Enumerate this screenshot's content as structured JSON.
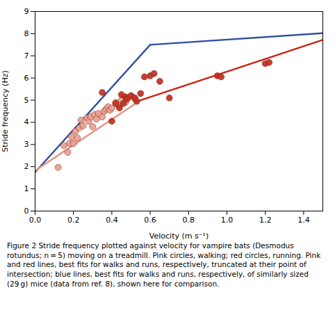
{
  "chart_data": {
    "type": "scatter",
    "xlabel": "Velocity (m s⁻¹)",
    "ylabel": "Stride frequency (Hz)",
    "caption": "Figure 2 Stride frequency plotted against velocity for vampire bats (Desmodus rotundus; n = 5) moving on a treadmill. Pink circles, walking; red circles, running. Pink and red lines, best fits for walks and runs, respectively, truncated at their point of intersection; blue lines, best fits for walks and runs, respectively, of similarly sized (29 g) mice (data from ref. 8), shown here for comparison.",
    "xlim": [
      0,
      1.5
    ],
    "ylim": [
      0,
      9
    ],
    "xticks": [
      {
        "value": 0,
        "label": "0.0"
      },
      0.2,
      0.4,
      0.6,
      0.8,
      {
        "value": 1.0,
        "label": "1.0"
      },
      1.2,
      1.4
    ],
    "yticks": [
      0,
      1,
      2,
      3,
      4,
      5,
      6,
      7,
      8,
      9
    ],
    "grid": false,
    "series": [
      {
        "type": "line",
        "color": "#3050a0",
        "x": [
          0.0,
          0.6
        ],
        "values": [
          1.75,
          7.5
        ]
      },
      {
        "type": "line",
        "color": "#3050a0",
        "x": [
          0.6,
          1.5
        ],
        "values": [
          7.5,
          8.02
        ]
      },
      {
        "type": "line",
        "color": "#e89080",
        "x": [
          0.0,
          0.55
        ],
        "values": [
          1.82,
          5.0
        ]
      },
      {
        "type": "line",
        "color": "#cc2010",
        "x": [
          0.55,
          1.5
        ],
        "values": [
          5.0,
          7.72
        ]
      },
      {
        "type": "scatter",
        "color": "#e8a090",
        "x": [
          0.12,
          0.15,
          0.17,
          0.18,
          0.19,
          0.2,
          0.21,
          0.22,
          0.23,
          0.24,
          0.25,
          0.27,
          0.28,
          0.29,
          0.3,
          0.31,
          0.32,
          0.33,
          0.35,
          0.36,
          0.37,
          0.38,
          0.39,
          0.4,
          0.42,
          0.43,
          0.44,
          0.45,
          0.47,
          0.48,
          0.5,
          0.52
        ],
        "values": [
          1.97,
          2.95,
          2.65,
          3.05,
          3.35,
          3.05,
          3.6,
          3.3,
          3.75,
          4.1,
          3.85,
          4.2,
          4.05,
          4.25,
          3.8,
          4.35,
          4.15,
          4.4,
          4.25,
          4.5,
          4.6,
          4.7,
          4.55,
          4.65,
          4.9,
          4.8,
          4.75,
          5.0,
          4.9,
          5.1,
          5.2,
          5.05
        ]
      },
      {
        "type": "scatter",
        "color": "#c03020",
        "x": [
          0.35,
          0.4,
          0.42,
          0.44,
          0.45,
          0.46,
          0.47,
          0.48,
          0.5,
          0.52,
          0.53,
          0.55,
          0.57,
          0.6,
          0.62,
          0.65,
          0.7,
          0.95,
          0.97,
          1.2,
          1.22
        ],
        "values": [
          5.35,
          4.05,
          4.85,
          4.65,
          5.25,
          4.85,
          5.15,
          5.05,
          5.2,
          5.1,
          4.95,
          5.3,
          6.05,
          6.1,
          6.2,
          5.85,
          5.1,
          6.1,
          6.05,
          6.65,
          6.7
        ]
      }
    ]
  }
}
